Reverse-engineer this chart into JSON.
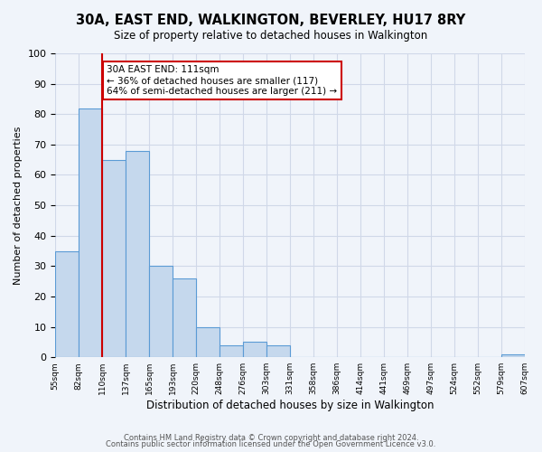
{
  "title": "30A, EAST END, WALKINGTON, BEVERLEY, HU17 8RY",
  "subtitle": "Size of property relative to detached houses in Walkington",
  "xlabel": "Distribution of detached houses by size in Walkington",
  "ylabel": "Number of detached properties",
  "bar_values": [
    35,
    82,
    65,
    68,
    30,
    26,
    10,
    4,
    5,
    4,
    0,
    0,
    0,
    0,
    0,
    0,
    0,
    0,
    0,
    1
  ],
  "bin_labels": [
    "55sqm",
    "82sqm",
    "110sqm",
    "137sqm",
    "165sqm",
    "193sqm",
    "220sqm",
    "248sqm",
    "276sqm",
    "303sqm",
    "331sqm",
    "358sqm",
    "386sqm",
    "414sqm",
    "441sqm",
    "469sqm",
    "497sqm",
    "524sqm",
    "552sqm",
    "579sqm",
    "607sqm"
  ],
  "bar_color": "#c5d8ed",
  "bar_edge_color": "#5b9bd5",
  "grid_color": "#d0d8e8",
  "reference_line_color": "#cc0000",
  "annotation_text": "30A EAST END: 111sqm\n← 36% of detached houses are smaller (117)\n64% of semi-detached houses are larger (211) →",
  "annotation_box_color": "#ffffff",
  "annotation_box_edge": "#cc0000",
  "ylim": [
    0,
    100
  ],
  "footnote1": "Contains HM Land Registry data © Crown copyright and database right 2024.",
  "footnote2": "Contains public sector information licensed under the Open Government Licence v3.0.",
  "bg_color": "#f0f4fa"
}
